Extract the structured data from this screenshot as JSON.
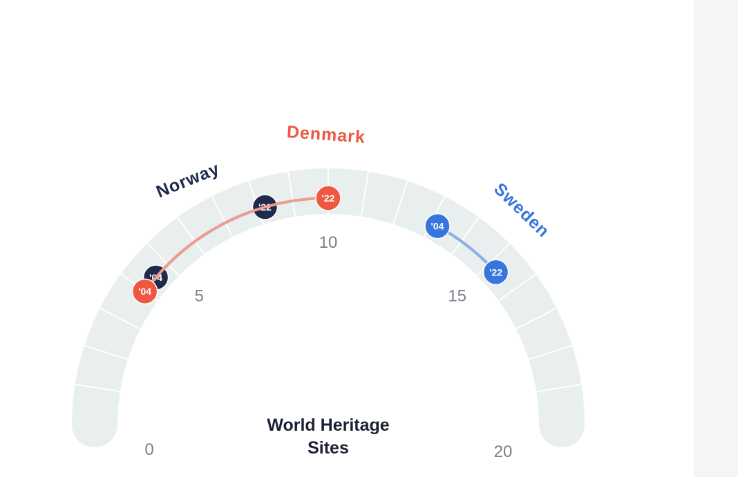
{
  "chart_data": {
    "type": "gauge",
    "title": "World Heritage Sites",
    "title_lines": [
      "World Heritage",
      "Sites"
    ],
    "range": [
      0,
      20
    ],
    "tick_values": [
      0,
      5,
      10,
      15,
      20
    ],
    "tick_labels": [
      "0",
      "5",
      "10",
      "15",
      "20"
    ],
    "segments": 20,
    "series": [
      {
        "name": "Norway",
        "color": "#202b4c",
        "line_color": "#8a8f9e",
        "points": [
          {
            "label": "'04",
            "year": 2004,
            "value": 4.5
          },
          {
            "label": "'22",
            "year": 2022,
            "value": 8.2
          }
        ]
      },
      {
        "name": "Denmark",
        "color": "#ee5840",
        "line_color": "#ee9c8e",
        "points": [
          {
            "label": "'04",
            "year": 2004,
            "value": 4.0
          },
          {
            "label": "'22",
            "year": 2022,
            "value": 10.0
          }
        ]
      },
      {
        "name": "Sweden",
        "color": "#3875dc",
        "line_color": "#8aaee6",
        "points": [
          {
            "label": "'04",
            "year": 2004,
            "value": 13.2
          },
          {
            "label": "'22",
            "year": 2022,
            "value": 15.3
          }
        ]
      }
    ]
  },
  "colors": {
    "track": "#e9eeee",
    "divider": "#ffffff",
    "tick_text": "#7a8088",
    "title_text": "#1c2233",
    "side_panel": "#f3f5f6"
  }
}
